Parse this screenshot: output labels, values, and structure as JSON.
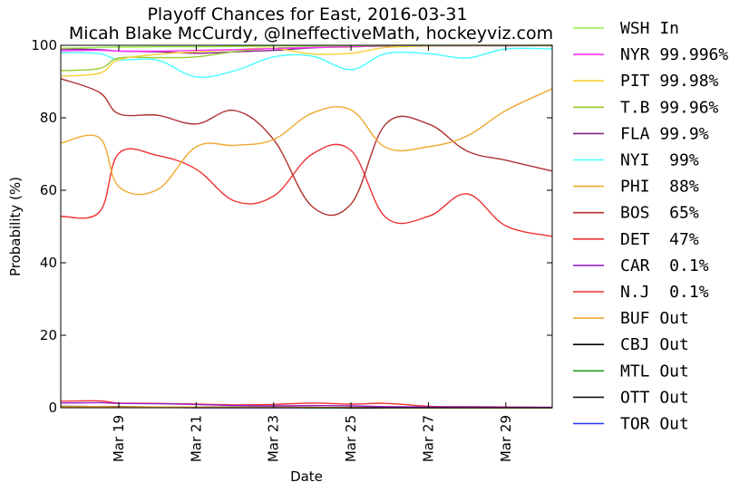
{
  "chart_data": {
    "type": "line",
    "title": "Playoff Chances for East, 2016-03-31",
    "subtitle": "Micah Blake McCurdy, @IneffectiveMath, hockeyviz.com",
    "xlabel": "Date",
    "ylabel": "Probability (%)",
    "ylim": [
      0,
      100
    ],
    "yticks": [
      "0",
      "20",
      "40",
      "60",
      "80",
      "100"
    ],
    "xticks": [
      "Mar 19",
      "Mar 21",
      "Mar 23",
      "Mar 25",
      "Mar 27",
      "Mar 29"
    ],
    "xtick_days": [
      19,
      21,
      23,
      25,
      27,
      29
    ],
    "xlim_days": [
      17.5,
      30.2
    ],
    "grid": false,
    "legend_position": "outside-right",
    "x_days": [
      17.5,
      18.5,
      19.0,
      20.0,
      21.0,
      22.0,
      23.0,
      24.0,
      25.0,
      25.9,
      27.0,
      28.0,
      29.0,
      30.2
    ],
    "series": [
      {
        "name": "WSH",
        "status": "In",
        "color": "#99ee44",
        "values": [
          99.2,
          99.4,
          99.5,
          99.6,
          99.6,
          99.7,
          99.8,
          99.9,
          99.9,
          100,
          100,
          100,
          100,
          100
        ]
      },
      {
        "name": "NYR",
        "status": "99.996%",
        "color": "#ff33ff",
        "values": [
          98.5,
          98.6,
          98.4,
          98.4,
          98.6,
          98.8,
          99.1,
          99.4,
          99.6,
          99.9,
          99.9,
          99.9,
          99.9,
          99.996
        ]
      },
      {
        "name": "PIT",
        "status": "99.98%",
        "color": "#f5d033",
        "values": [
          91.5,
          92.3,
          96.0,
          97.5,
          98.2,
          98.8,
          99.2,
          97.6,
          97.8,
          99.4,
          99.8,
          99.9,
          99.9,
          99.98
        ]
      },
      {
        "name": "T.B",
        "status": "99.96%",
        "color": "#99cc33",
        "values": [
          93.0,
          93.6,
          96.5,
          96.6,
          96.8,
          98.3,
          99.2,
          99.5,
          99.5,
          99.9,
          99.9,
          99.9,
          99.9,
          99.96
        ]
      },
      {
        "name": "FLA",
        "status": "99.9%",
        "color": "#882288",
        "values": [
          99.0,
          98.8,
          98.4,
          98.2,
          97.8,
          98.2,
          98.6,
          99.3,
          99.6,
          99.8,
          99.9,
          99.9,
          99.9,
          99.9
        ]
      },
      {
        "name": "NYI",
        "status": "99%",
        "color": "#44ffff",
        "values": [
          98.0,
          97.7,
          96.0,
          95.9,
          91.3,
          93.0,
          96.8,
          97.0,
          93.3,
          97.7,
          97.7,
          96.5,
          99.0,
          99.0
        ]
      },
      {
        "name": "PHI",
        "status": "88%",
        "color": "#f0a830",
        "values": [
          73.0,
          74.5,
          61.0,
          60.2,
          72.0,
          72.4,
          74.0,
          81.3,
          82.2,
          71.8,
          72.0,
          75.0,
          82.0,
          88.0
        ]
      },
      {
        "name": "BOS",
        "status": "65%",
        "color": "#b03030",
        "values": [
          90.8,
          87.0,
          81.1,
          80.7,
          78.3,
          82.0,
          74.0,
          55.5,
          56.2,
          78.3,
          78.3,
          70.8,
          68.3,
          65.3
        ]
      },
      {
        "name": "DET",
        "status": "47%",
        "color": "#ee3333",
        "values": [
          52.8,
          54.0,
          70.2,
          69.6,
          65.8,
          57.0,
          58.4,
          70.0,
          71.0,
          52.5,
          52.8,
          59.0,
          50.2,
          47.3
        ]
      },
      {
        "name": "CAR",
        "status": "0.1%",
        "color": "#9922cc",
        "values": [
          1.3,
          1.4,
          1.2,
          1.1,
          0.9,
          0.6,
          0.5,
          0.6,
          0.5,
          0.3,
          0.2,
          0.2,
          0.1,
          0.1
        ]
      },
      {
        "name": "N.J",
        "status": "0.1%",
        "color": "#ee3333",
        "values": [
          1.8,
          1.9,
          1.3,
          1.2,
          1.0,
          0.8,
          0.9,
          1.3,
          1.0,
          1.2,
          0.4,
          0.3,
          0.2,
          0.1
        ]
      },
      {
        "name": "BUF",
        "status": "Out",
        "color": "#f0a830",
        "values": [
          0.3,
          0.3,
          0.2,
          0.2,
          0.2,
          0.1,
          0.1,
          0.1,
          0.1,
          0.0,
          0.0,
          0.0,
          0.0,
          0.0
        ]
      },
      {
        "name": "CBJ",
        "status": "Out",
        "color": "#000000",
        "values": [
          0.4,
          0.3,
          0.3,
          0.2,
          0.2,
          0.1,
          0.1,
          0.1,
          0.0,
          0.0,
          0.0,
          0.0,
          0.0,
          0.0
        ]
      },
      {
        "name": "MTL",
        "status": "Out",
        "color": "#229922",
        "values": [
          0.2,
          0.2,
          0.2,
          0.1,
          0.1,
          0.1,
          0.1,
          0.0,
          0.0,
          0.0,
          0.0,
          0.0,
          0.0,
          0.0
        ]
      },
      {
        "name": "OTT",
        "status": "Out",
        "color": "#111111",
        "values": [
          0.3,
          0.2,
          0.2,
          0.2,
          0.1,
          0.1,
          0.1,
          0.1,
          0.0,
          0.0,
          0.0,
          0.0,
          0.0,
          0.0
        ]
      },
      {
        "name": "TOR",
        "status": "Out",
        "color": "#2233ee",
        "values": [
          0.1,
          0.1,
          0.1,
          0.1,
          0.0,
          0.0,
          0.0,
          0.0,
          0.0,
          0.0,
          0.0,
          0.0,
          0.0,
          0.0
        ]
      }
    ]
  }
}
